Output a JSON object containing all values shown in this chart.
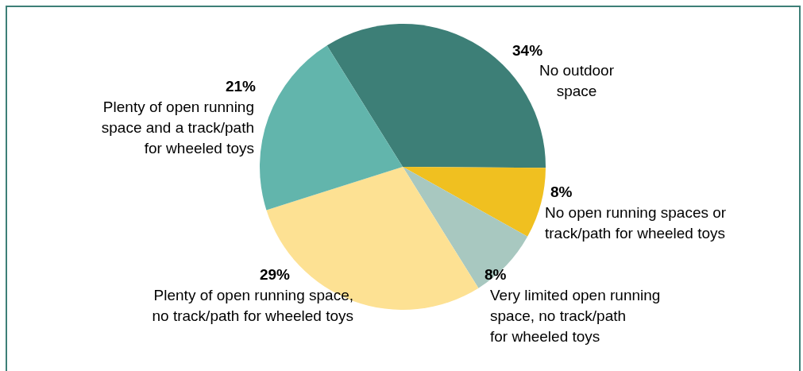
{
  "chart_data": {
    "type": "pie",
    "categories": [
      "No outdoor space",
      "No open running spaces or track/path for wheeled toys",
      "Very limited open running space, no track/path for wheeled toys",
      "Plenty of open running space, no track/path for wheeled toys",
      "Plenty of open running space and a track/path for wheeled toys"
    ],
    "values": [
      34,
      8,
      8,
      29,
      21
    ],
    "colors": [
      "#3d7f77",
      "#f0c020",
      "#a8c8c0",
      "#fde193",
      "#62b5ac"
    ],
    "value_labels": [
      "34%",
      "8%",
      "8%",
      "29%",
      "21%"
    ]
  }
}
